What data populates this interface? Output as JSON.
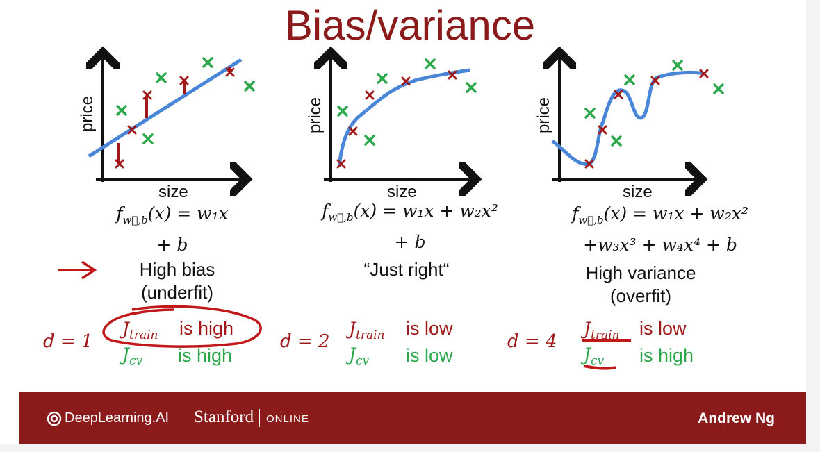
{
  "title": "Bias/variance",
  "axes": {
    "xlabel": "size",
    "ylabel": "price"
  },
  "panels": [
    {
      "formula_main": "f",
      "formula_sub": "w⃗,b",
      "formula_line1": "(x) = w₁x",
      "formula_line2": "+ b",
      "label_line1": "High bias",
      "label_line2": "(underfit)",
      "degree": "d = 1",
      "j_train_letter": "J",
      "j_train_sub": "train",
      "j_train_status": "is high",
      "j_cv_letter": "J",
      "j_cv_sub": "cv",
      "j_cv_status": "is high"
    },
    {
      "formula_main": "f",
      "formula_sub": "w⃗,b",
      "formula_line1": "(x) = w₁x + w₂x²",
      "formula_line2": "+ b",
      "label_line1": "“Just right“",
      "label_line2": "",
      "degree": "d = 2",
      "j_train_letter": "J",
      "j_train_sub": "train",
      "j_train_status": "is low",
      "j_cv_letter": "J",
      "j_cv_sub": "cv",
      "j_cv_status": "is low"
    },
    {
      "formula_main": "f",
      "formula_sub": "w⃗,b",
      "formula_line1": "(x) = w₁x + w₂x²",
      "formula_line2": "+w₃x³ + w₄x⁴ + b",
      "label_line1": "High variance",
      "label_line2": "(overfit)",
      "degree": "d = 4",
      "j_train_letter": "J",
      "j_train_sub": "train",
      "j_train_status": "is low",
      "j_cv_letter": "J",
      "j_cv_sub": "cv",
      "j_cv_status": "is high"
    }
  ],
  "footer": {
    "logo_text": "DeepLearning.AI",
    "stanford": "Stanford",
    "online": "ONLINE",
    "author": "Andrew Ng"
  },
  "colors": {
    "brand_red": "#8b1a1a",
    "train_red": "#a01818",
    "cv_green": "#2aa84a",
    "curve_blue": "#4a86d8"
  }
}
